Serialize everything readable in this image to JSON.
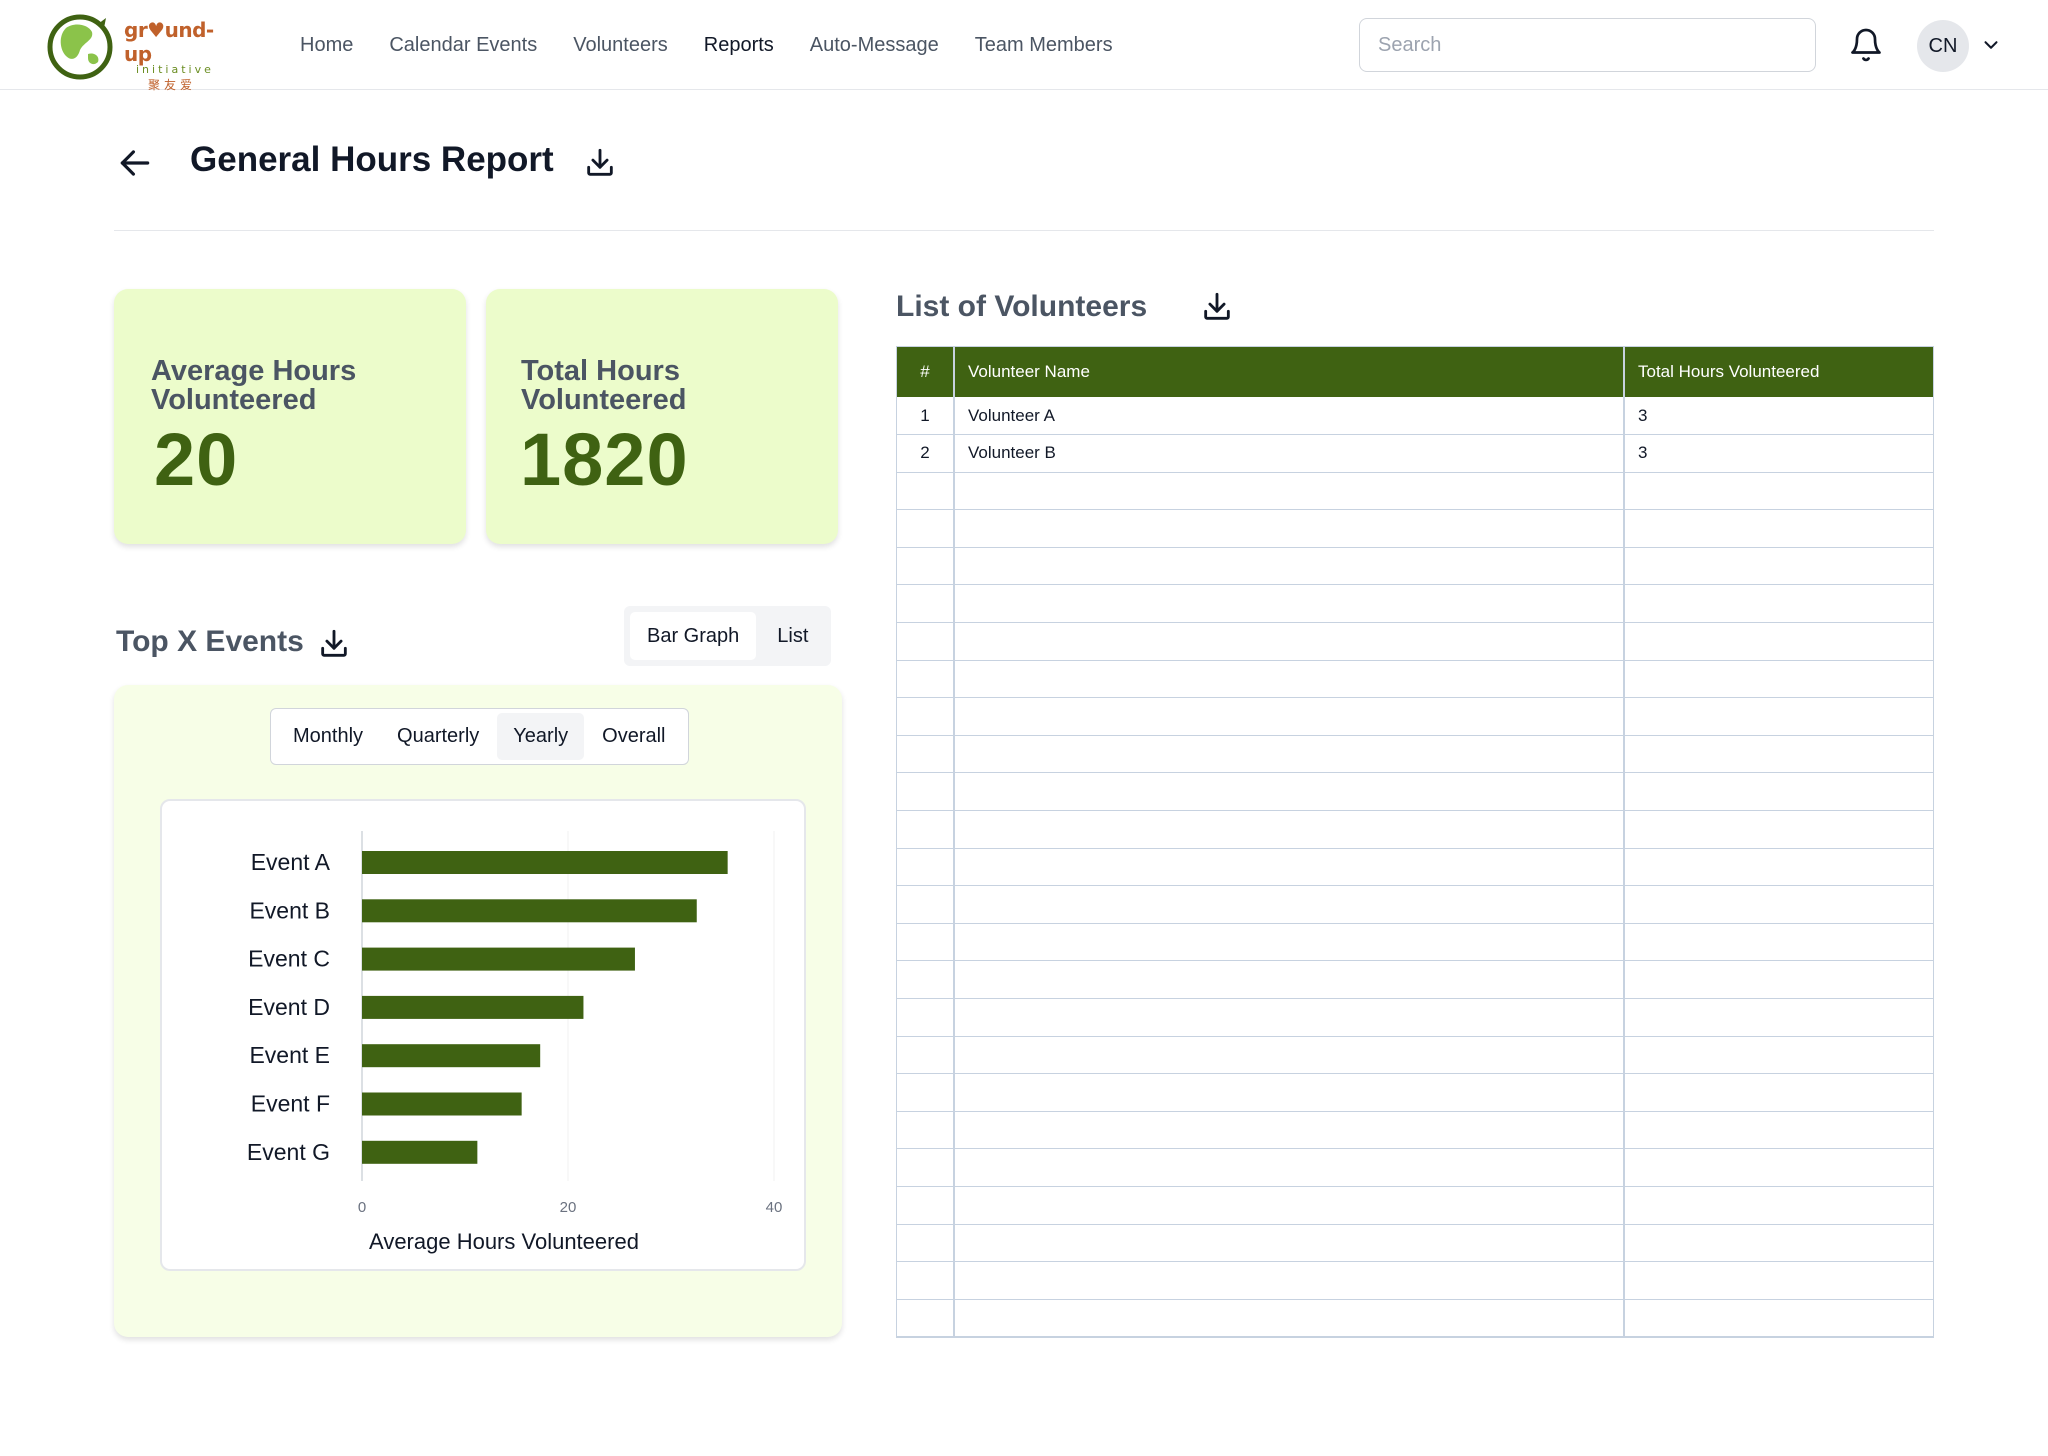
{
  "brand": {
    "name": "gr♥und-up",
    "sub": "initiative",
    "cn": "聚友爱"
  },
  "nav": [
    {
      "label": "Home",
      "active": false
    },
    {
      "label": "Calendar Events",
      "active": false
    },
    {
      "label": "Volunteers",
      "active": false
    },
    {
      "label": "Reports",
      "active": true
    },
    {
      "label": "Auto-Message",
      "active": false
    },
    {
      "label": "Team Members",
      "active": false
    }
  ],
  "search": {
    "placeholder": "Search",
    "value": ""
  },
  "user": {
    "initials": "CN"
  },
  "page": {
    "title": "General Hours Report"
  },
  "stats": {
    "average": {
      "label": "Average Hours Volunteered",
      "value": "20"
    },
    "total": {
      "label": "Total Hours Volunteered",
      "value": "1820"
    }
  },
  "top_events": {
    "title": "Top X Events",
    "view_options": [
      {
        "label": "Bar Graph",
        "selected": true
      },
      {
        "label": "List",
        "selected": false
      }
    ],
    "period_options": [
      {
        "label": "Monthly",
        "selected": false
      },
      {
        "label": "Quarterly",
        "selected": false
      },
      {
        "label": "Yearly",
        "selected": true
      },
      {
        "label": "Overall",
        "selected": false
      }
    ]
  },
  "chart_data": {
    "type": "bar",
    "orientation": "horizontal",
    "categories": [
      "Event A",
      "Event B",
      "Event C",
      "Event D",
      "Event E",
      "Event F",
      "Event G"
    ],
    "values": [
      35.5,
      32.5,
      26.5,
      21.5,
      17.3,
      15.5,
      11.2
    ],
    "xlabel": "Average Hours Volunteered",
    "ylabel": "",
    "xlim": [
      0,
      40
    ],
    "xticks": [
      "0",
      "20",
      "40"
    ],
    "grid": true,
    "bar_color": "#3f6212"
  },
  "volunteers": {
    "title": "List of Volunteers",
    "columns": [
      "#",
      "Volunteer Name",
      "Total Hours Volunteered"
    ],
    "rows": [
      [
        "1",
        "Volunteer A",
        "3"
      ],
      [
        "2",
        "Volunteer B",
        "3"
      ]
    ]
  },
  "colors": {
    "accent": "#3f6212",
    "card_bg": "#ecfccb",
    "panel_bg": "#f7fee7"
  }
}
